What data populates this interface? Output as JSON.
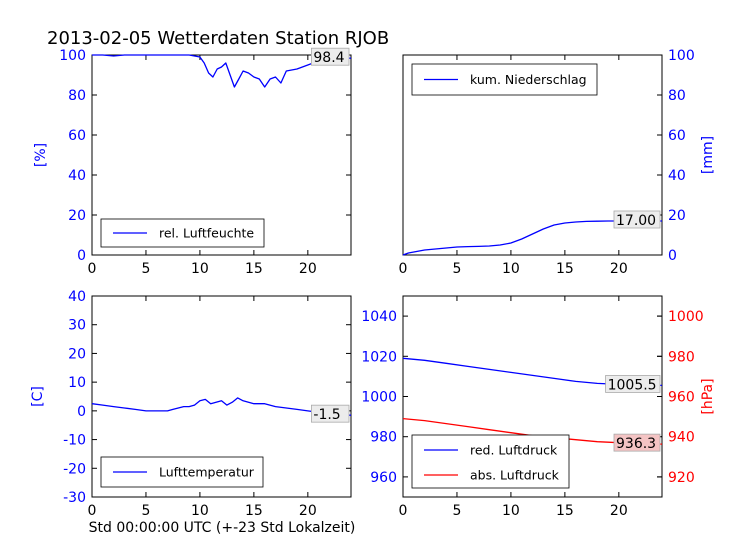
{
  "figure": {
    "title": "2013-02-05 Wetterdaten Station RJOB",
    "xlabel": "Std 00:00:00 UTC (+-23 Std Lokalzeit)"
  },
  "chart_data": [
    {
      "type": "line",
      "panel": "top-left",
      "ylabel": "[%]",
      "ylabel_color": "#0000ff",
      "tick_color": "#0000ff",
      "xlim": [
        0,
        24
      ],
      "ylim": [
        0,
        100
      ],
      "xticks": [
        0,
        5,
        10,
        15,
        20
      ],
      "yticks": [
        0,
        20,
        40,
        60,
        80,
        100
      ],
      "legend_loc": "lower-left",
      "last_value_label": "98.4",
      "series": [
        {
          "name": "rel. Luftfeuchte",
          "color": "#0000ff",
          "x": [
            0,
            1,
            2,
            3,
            4,
            5,
            6,
            7,
            8,
            9,
            10,
            10.4,
            10.8,
            11.2,
            11.6,
            12,
            12.4,
            12.8,
            13.2,
            13.6,
            14,
            14.5,
            15,
            15.5,
            16,
            16.5,
            17,
            17.5,
            18,
            19,
            20,
            21,
            22,
            23,
            24
          ],
          "y": [
            100,
            100,
            99.5,
            100,
            100,
            100,
            100,
            100,
            100,
            100,
            99,
            96,
            91,
            89,
            93,
            94,
            96,
            90,
            84,
            88,
            92,
            91,
            89,
            88,
            84,
            88,
            89,
            86,
            92,
            93,
            95,
            97,
            98,
            98.4,
            98.4
          ]
        }
      ]
    },
    {
      "type": "line",
      "panel": "top-right",
      "ylabel": "[mm]",
      "ylabel_color": "#0000ff",
      "tick_color": "#0000ff",
      "yaxis_side": "right",
      "xlim": [
        0,
        24
      ],
      "ylim": [
        0,
        100
      ],
      "xticks": [
        0,
        5,
        10,
        15,
        20
      ],
      "yticks": [
        0,
        20,
        40,
        60,
        80,
        100
      ],
      "legend_loc": "upper-left",
      "last_value_label": "17.00",
      "series": [
        {
          "name": "kum. Niederschlag",
          "color": "#0000ff",
          "x": [
            0,
            0.5,
            1,
            2,
            3,
            4,
            5,
            6,
            7,
            8,
            9,
            10,
            11,
            12,
            13,
            14,
            15,
            16,
            17,
            18,
            19,
            20,
            21,
            22,
            23,
            24
          ],
          "y": [
            0,
            1,
            1.5,
            2.5,
            3,
            3.5,
            4,
            4.2,
            4.3,
            4.5,
            5,
            6,
            8,
            10.5,
            13,
            15,
            16,
            16.5,
            16.8,
            16.9,
            17,
            17,
            17,
            17,
            17,
            17
          ]
        }
      ]
    },
    {
      "type": "line",
      "panel": "bottom-left",
      "ylabel": "[C]",
      "ylabel_color": "#0000ff",
      "tick_color": "#0000ff",
      "xlim": [
        0,
        24
      ],
      "ylim": [
        -30,
        40
      ],
      "xticks": [
        0,
        5,
        10,
        15,
        20
      ],
      "yticks": [
        -30,
        -20,
        -10,
        0,
        10,
        20,
        30,
        40
      ],
      "legend_loc": "lower-left",
      "last_value_label": "-1.5",
      "series": [
        {
          "name": "Lufttemperatur",
          "color": "#0000ff",
          "x": [
            0,
            1,
            2,
            3,
            4,
            5,
            6,
            7,
            7.5,
            8,
            8.5,
            9,
            9.5,
            10,
            10.5,
            11,
            11.5,
            12,
            12.5,
            13,
            13.5,
            14,
            15,
            16,
            17,
            18,
            19,
            20,
            21,
            22,
            23,
            24
          ],
          "y": [
            2.5,
            2,
            1.5,
            1,
            0.5,
            0,
            0,
            0,
            0.5,
            1,
            1.5,
            1.5,
            2,
            3.5,
            4,
            2.5,
            3,
            3.5,
            2,
            3,
            4.5,
            3.5,
            2.5,
            2.5,
            1.5,
            1,
            0.5,
            0,
            -0.5,
            -1,
            -1.5,
            -1.5
          ]
        }
      ]
    },
    {
      "type": "line",
      "panel": "bottom-right",
      "ylabel": "[hPa]",
      "ylabel_color": "#ff0000",
      "tick_color": "#0000ff",
      "right_tick_color": "#ff0000",
      "xlim": [
        0,
        24
      ],
      "ylim": [
        950,
        1050
      ],
      "yticks": [
        960,
        980,
        1000,
        1020,
        1040
      ],
      "right_ylim": [
        910,
        1010
      ],
      "right_yticks": [
        920,
        940,
        960,
        980,
        1000
      ],
      "xticks": [
        0,
        5,
        10,
        15,
        20
      ],
      "legend_loc": "lower-left",
      "last_value_labels": [
        "1005.5",
        "936.3"
      ],
      "series": [
        {
          "name": "red. Luftdruck",
          "color": "#0000ff",
          "axis": "left",
          "label_index": 0,
          "x": [
            0,
            2,
            4,
            6,
            8,
            10,
            12,
            14,
            16,
            18,
            20,
            22,
            24
          ],
          "y": [
            1019,
            1018,
            1016.5,
            1015,
            1013.5,
            1012,
            1010.5,
            1009,
            1007.5,
            1006.5,
            1006,
            1005.7,
            1005.5
          ]
        },
        {
          "name": "abs. Luftdruck",
          "color": "#ff0000",
          "axis": "right",
          "label_index": 1,
          "x": [
            0,
            2,
            4,
            6,
            8,
            10,
            12,
            14,
            16,
            18,
            20,
            22,
            24
          ],
          "y": [
            949,
            948,
            946.5,
            945,
            943.5,
            942,
            940.5,
            939.5,
            938.5,
            937.5,
            937,
            936.6,
            936.3
          ]
        }
      ]
    }
  ]
}
